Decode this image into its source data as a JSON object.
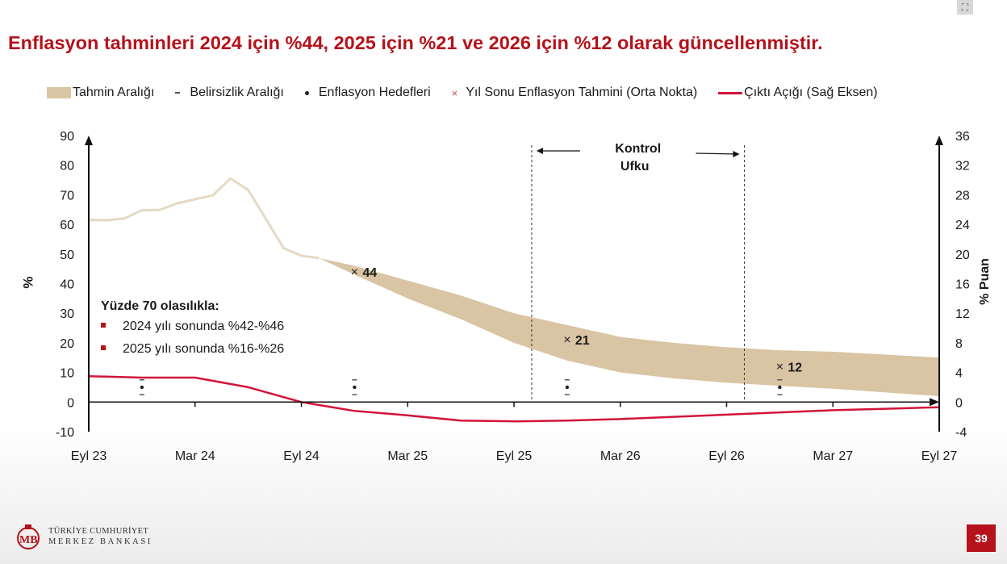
{
  "title": "Enflasyon tahminleri 2024 için %44, 2025 için %21 ve 2026 için %12 olarak güncellenmiştir.",
  "legend": {
    "band": "Tahmin Aralığı",
    "uncertainty": "Belirsizlik Aralığı",
    "targets": "Enflasyon Hedefleri",
    "midpoint": "Yıl Sonu Enflasyon Tahmini (Orta Nokta)",
    "output_gap": "Çıktı Açığı (Sağ Eksen)"
  },
  "left_axis_label": "%",
  "right_axis_label": "% Puan",
  "control_horizon": {
    "line1": "Kontrol",
    "line2": "Ufku"
  },
  "probability_box": {
    "heading": "Yüzde 70 olasılıkla:",
    "items": [
      "2024 yılı sonunda %42-%46",
      "2025 yılı sonunda %16-%26"
    ]
  },
  "footer": {
    "line1": "TÜRKİYE CUMHURİYET",
    "line2": "MERKEZ BANKASI",
    "page": "39"
  },
  "colors": {
    "accent_red": "#b5121b",
    "band": "#d9c4a3",
    "history": "#e6d9c2",
    "output_gap": "#d2143a"
  },
  "chart_data": {
    "type": "line",
    "x_ticks": [
      "Eyl 23",
      "Mar 24",
      "Eyl 24",
      "Mar 25",
      "Eyl 25",
      "Mar 26",
      "Eyl 26",
      "Mar 27",
      "Eyl 27"
    ],
    "left_axis": {
      "ylim": [
        -10,
        90
      ],
      "ticks": [
        -10,
        0,
        10,
        20,
        30,
        40,
        50,
        60,
        70,
        80,
        90
      ]
    },
    "right_axis": {
      "ylim": [
        -4,
        36
      ],
      "ticks": [
        -4,
        0,
        4,
        8,
        12,
        16,
        20,
        24,
        28,
        32,
        36
      ]
    },
    "x_unit": "months since Eyl 23",
    "history": {
      "x": [
        0,
        1,
        2,
        3,
        4,
        5,
        6,
        7,
        8,
        9,
        10,
        11,
        12,
        13
      ],
      "y": [
        61.5,
        61.4,
        62,
        64.8,
        64.9,
        67.1,
        68.5,
        69.8,
        75.5,
        71.6,
        61.8,
        52,
        49.4,
        48.6
      ]
    },
    "forecast_band": {
      "x": [
        13,
        15,
        18,
        21,
        24,
        27,
        30,
        33,
        36,
        39,
        42,
        48
      ],
      "upper": [
        48.6,
        46,
        41,
        36,
        30,
        26,
        22,
        20,
        18.5,
        17.5,
        17,
        15
      ],
      "lower": [
        48.6,
        43,
        35,
        28,
        20,
        14,
        10,
        8,
        6.5,
        5.5,
        4.5,
        2
      ]
    },
    "year_end_forecasts": [
      {
        "x": 15,
        "y": 44,
        "label": "44"
      },
      {
        "x": 27,
        "y": 21,
        "label": "21"
      },
      {
        "x": 39,
        "y": 12,
        "label": "12"
      }
    ],
    "inflation_targets": [
      {
        "x": 3,
        "y": 5
      },
      {
        "x": 15,
        "y": 5
      },
      {
        "x": 27,
        "y": 5
      },
      {
        "x": 39,
        "y": 5
      }
    ],
    "output_gap": {
      "axis": "right",
      "x": [
        0,
        3,
        6,
        9,
        12,
        15,
        18,
        21,
        24,
        27,
        30,
        33,
        36,
        39,
        42,
        45,
        48
      ],
      "y": [
        3.5,
        3.3,
        3.3,
        2,
        0,
        -1.2,
        -1.8,
        -2.5,
        -2.6,
        -2.5,
        -2.3,
        -2,
        -1.7,
        -1.4,
        -1.1,
        -0.9,
        -0.7
      ]
    },
    "control_horizon_x": [
      25,
      37
    ]
  }
}
